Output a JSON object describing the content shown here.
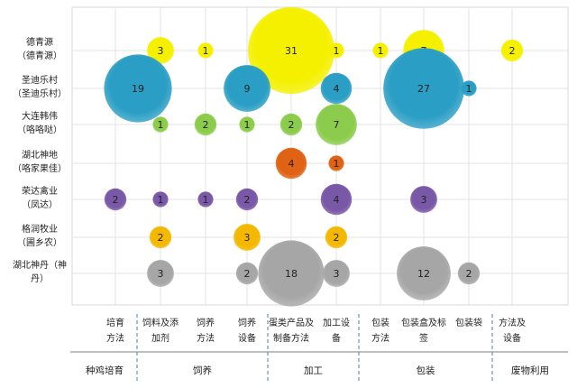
{
  "chart_data": {
    "type": "bubble",
    "grid": true,
    "legend": "none",
    "rows": [
      [
        "德青源",
        "（德青源）"
      ],
      [
        "圣迪乐村",
        "（圣迪乐村）"
      ],
      [
        "大连韩伟",
        "（咯咯哒）"
      ],
      [
        "湖北神地",
        "（咯家果佳）"
      ],
      [
        "荣达禽业",
        "（凤达）"
      ],
      [
        "格润牧业",
        "（圃乡农）"
      ],
      [
        "湖北神丹（神",
        "丹）"
      ]
    ],
    "row_colors": [
      "#f5f000",
      "#2a9ec4",
      "#8ccc4c",
      "#e06214",
      "#7a58a8",
      "#f5b800",
      "#a6a6a6"
    ],
    "columns": [
      [
        "培育",
        "方法"
      ],
      [
        "饲料及添",
        "加剂"
      ],
      [
        "饲养",
        "方法"
      ],
      [
        "饲养",
        "设备"
      ],
      [
        "蛋类产品及",
        "制备方法"
      ],
      [
        "加工设",
        "备"
      ],
      [
        "包装",
        "方法"
      ],
      [
        "包装盒及标",
        "签"
      ],
      [
        "包装袋",
        ""
      ],
      [
        "方法及",
        "设备"
      ]
    ],
    "groups": [
      {
        "label": "种鸡培育",
        "span": [
          0,
          0
        ]
      },
      {
        "label": "饲养",
        "span": [
          1,
          3
        ]
      },
      {
        "label": "加工",
        "span": [
          4,
          5
        ]
      },
      {
        "label": "包装",
        "span": [
          6,
          8
        ]
      },
      {
        "label": "废物利用",
        "span": [
          9,
          9
        ]
      }
    ],
    "points": [
      {
        "row": 0,
        "col": 1,
        "value": 3
      },
      {
        "row": 0,
        "col": 2,
        "value": 1
      },
      {
        "row": 0,
        "col": 4,
        "value": 31
      },
      {
        "row": 0,
        "col": 5,
        "value": 1
      },
      {
        "row": 0,
        "col": 6,
        "value": 1
      },
      {
        "row": 0,
        "col": 7,
        "value": 7
      },
      {
        "row": 0,
        "col": 9,
        "value": 2
      },
      {
        "row": 1,
        "col": 0.5,
        "value": 19
      },
      {
        "row": 1,
        "col": 3,
        "value": 9
      },
      {
        "row": 1,
        "col": 5,
        "value": 4
      },
      {
        "row": 1,
        "col": 7,
        "value": 27
      },
      {
        "row": 1,
        "col": 8,
        "value": 1
      },
      {
        "row": 2,
        "col": 1,
        "value": 1
      },
      {
        "row": 2,
        "col": 2,
        "value": 2
      },
      {
        "row": 2,
        "col": 3,
        "value": 1
      },
      {
        "row": 2,
        "col": 4,
        "value": 2
      },
      {
        "row": 2,
        "col": 5,
        "value": 7
      },
      {
        "row": 3,
        "col": 4,
        "value": 4
      },
      {
        "row": 3,
        "col": 5,
        "value": 1
      },
      {
        "row": 4,
        "col": 0,
        "value": 2
      },
      {
        "row": 4,
        "col": 1,
        "value": 1
      },
      {
        "row": 4,
        "col": 2,
        "value": 1
      },
      {
        "row": 4,
        "col": 3,
        "value": 2
      },
      {
        "row": 4,
        "col": 5,
        "value": 4
      },
      {
        "row": 4,
        "col": 7,
        "value": 3
      },
      {
        "row": 5,
        "col": 1,
        "value": 2
      },
      {
        "row": 5,
        "col": 3,
        "value": 3
      },
      {
        "row": 5,
        "col": 5,
        "value": 2
      },
      {
        "row": 6,
        "col": 1,
        "value": 3
      },
      {
        "row": 6,
        "col": 3,
        "value": 2
      },
      {
        "row": 6,
        "col": 4,
        "value": 18
      },
      {
        "row": 6,
        "col": 5,
        "value": 3
      },
      {
        "row": 6,
        "col": 7,
        "value": 12
      },
      {
        "row": 6,
        "col": 8,
        "value": 2
      }
    ]
  }
}
